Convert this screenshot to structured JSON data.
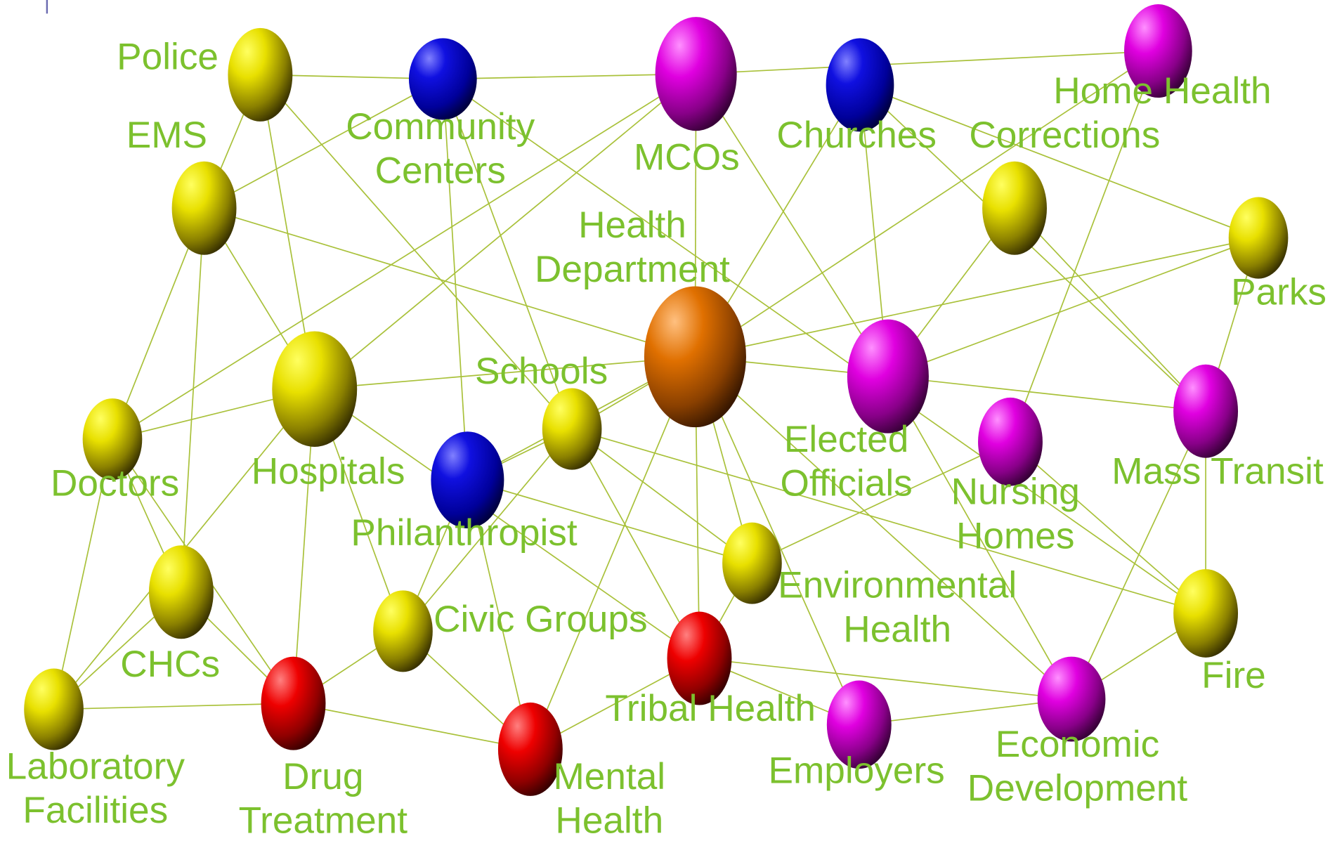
{
  "nodes": [
    {
      "label": [
        "Police"
      ]
    },
    {
      "label": [
        "Community",
        "Centers"
      ]
    },
    {
      "label": [
        "MCOs"
      ]
    },
    {
      "label": [
        "Churches"
      ]
    },
    {
      "label": [
        "Home Health"
      ]
    },
    {
      "label": [
        "Corrections"
      ]
    },
    {
      "label": [
        "EMS"
      ]
    },
    {
      "label": [
        "Parks"
      ]
    },
    {
      "label": [
        "Health",
        "Department"
      ]
    },
    {
      "label": [
        "Hospitals"
      ]
    },
    {
      "label": [
        "Doctors"
      ]
    },
    {
      "label": [
        "Schools"
      ]
    },
    {
      "label": [
        "Philanthropist"
      ]
    },
    {
      "label": [
        "Elected",
        "Officials"
      ]
    },
    {
      "label": [
        "Nursing",
        "Homes"
      ]
    },
    {
      "label": [
        "Mass Transit"
      ]
    },
    {
      "label": [
        "CHCs"
      ]
    },
    {
      "label": [
        "Environmental",
        "Health"
      ]
    },
    {
      "label": [
        "Civic Groups"
      ]
    },
    {
      "label": [
        "Fire"
      ]
    },
    {
      "label": [
        "Laboratory",
        "Facilities"
      ]
    },
    {
      "label": [
        "Drug",
        "Treatment"
      ]
    },
    {
      "label": [
        "Tribal Health"
      ]
    },
    {
      "label": [
        "Mental",
        "Health"
      ]
    },
    {
      "label": [
        "Employers"
      ]
    },
    {
      "label": [
        "Economic",
        "Development"
      ]
    }
  ]
}
